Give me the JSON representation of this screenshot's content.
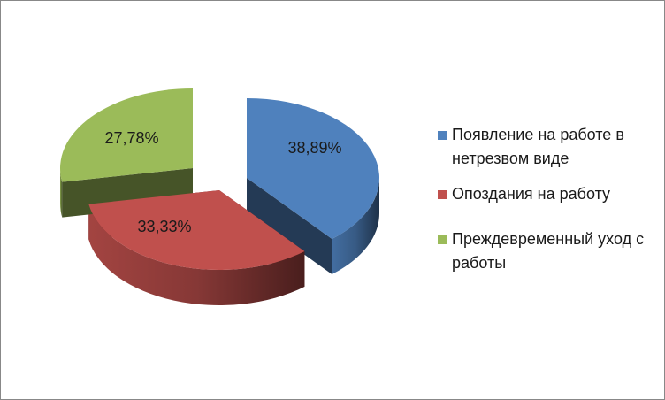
{
  "chart_data": {
    "type": "pie",
    "style": "3d-exploded",
    "legend_position": "right",
    "slices": [
      {
        "label": "Появление на работе в нетрезвом виде",
        "value": 38.89,
        "value_label": "38,89%",
        "color": "#4F81BD"
      },
      {
        "label": "Опоздания на работу",
        "value": 33.33,
        "value_label": "33,33%",
        "color": "#C0504D"
      },
      {
        "label": "Преждевременный уход с работы",
        "value": 27.78,
        "value_label": "27,78%",
        "color": "#9BBB59"
      }
    ]
  }
}
